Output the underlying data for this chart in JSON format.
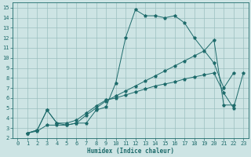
{
  "xlabel": "Humidex (Indice chaleur)",
  "xlim": [
    -0.5,
    23.5
  ],
  "ylim": [
    2,
    15.5
  ],
  "xticks": [
    0,
    1,
    2,
    3,
    4,
    5,
    6,
    7,
    8,
    9,
    10,
    11,
    12,
    13,
    14,
    15,
    16,
    17,
    18,
    19,
    20,
    21,
    22,
    23
  ],
  "yticks": [
    2,
    3,
    4,
    5,
    6,
    7,
    8,
    9,
    10,
    11,
    12,
    13,
    14,
    15
  ],
  "bg_color": "#cde4e4",
  "grid_color": "#9bbfbf",
  "line_color": "#1e6b6b",
  "lines": [
    {
      "x": [
        1,
        2,
        3,
        4,
        5,
        6,
        7,
        8,
        9,
        10,
        11,
        12,
        13,
        14,
        15,
        16,
        17,
        18,
        20,
        21,
        22
      ],
      "y": [
        2.5,
        2.7,
        3.3,
        3.3,
        3.3,
        3.5,
        3.5,
        4.8,
        5.1,
        7.5,
        12.0,
        14.8,
        14.2,
        14.2,
        14.0,
        14.2,
        13.5,
        12.0,
        9.5,
        7.0,
        8.5
      ]
    },
    {
      "x": [
        1,
        2,
        3,
        4,
        5,
        6,
        7,
        8,
        9,
        10,
        11,
        12,
        13,
        14,
        15,
        16,
        17,
        18,
        19,
        20,
        21,
        22
      ],
      "y": [
        2.5,
        2.8,
        4.8,
        3.5,
        3.3,
        3.5,
        4.3,
        5.0,
        5.7,
        6.2,
        6.7,
        7.2,
        7.7,
        8.2,
        8.7,
        9.2,
        9.7,
        10.2,
        10.7,
        11.8,
        5.3,
        5.3
      ]
    },
    {
      "x": [
        1,
        2,
        3,
        4,
        5,
        6,
        7,
        8,
        9,
        10,
        11,
        12,
        13,
        14,
        15,
        16,
        17,
        18,
        19,
        20,
        21,
        22,
        23
      ],
      "y": [
        2.5,
        2.8,
        4.8,
        3.5,
        3.5,
        3.8,
        4.5,
        5.2,
        5.8,
        6.0,
        6.3,
        6.6,
        6.9,
        7.2,
        7.4,
        7.6,
        7.9,
        8.1,
        8.3,
        8.5,
        6.5,
        5.0,
        8.5
      ]
    }
  ]
}
